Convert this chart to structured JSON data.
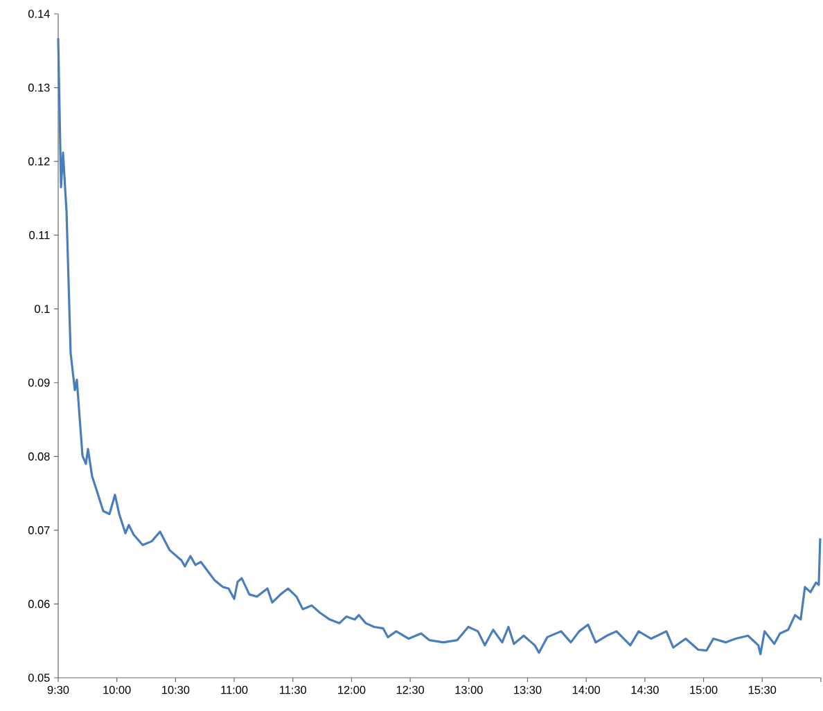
{
  "chart_data": {
    "type": "line",
    "x": [
      9.5,
      9.524,
      9.541,
      9.571,
      9.606,
      9.642,
      9.659,
      9.707,
      9.736,
      9.754,
      9.789,
      9.836,
      9.884,
      9.937,
      9.984,
      10.02,
      10.073,
      10.102,
      10.143,
      10.22,
      10.297,
      10.368,
      10.45,
      10.551,
      10.58,
      10.627,
      10.669,
      10.716,
      10.787,
      10.834,
      10.905,
      10.952,
      11.0,
      11.029,
      11.064,
      11.129,
      11.194,
      11.283,
      11.324,
      11.395,
      11.46,
      11.531,
      11.584,
      11.661,
      11.732,
      11.814,
      11.897,
      11.956,
      12.027,
      12.063,
      12.121,
      12.192,
      12.269,
      12.31,
      12.381,
      12.487,
      12.593,
      12.664,
      12.782,
      12.9,
      12.995,
      13.077,
      13.136,
      13.207,
      13.284,
      13.337,
      13.384,
      13.467,
      13.562,
      13.597,
      13.668,
      13.786,
      13.869,
      13.94,
      14.016,
      14.081,
      14.175,
      14.258,
      14.376,
      14.447,
      14.553,
      14.683,
      14.742,
      14.848,
      14.955,
      15.025,
      15.084,
      15.19,
      15.273,
      15.379,
      15.467,
      15.485,
      15.52,
      15.603,
      15.651,
      15.721,
      15.78,
      15.828,
      15.864,
      15.911,
      15.958,
      15.982,
      15.994
    ],
    "series": [
      {
        "color": "#4a7ebb",
        "values": [
          0.1367,
          0.1165,
          0.1212,
          0.1132,
          0.094,
          0.089,
          0.0904,
          0.0801,
          0.079,
          0.081,
          0.0773,
          0.075,
          0.0726,
          0.0722,
          0.0748,
          0.0722,
          0.0696,
          0.0707,
          0.0694,
          0.068,
          0.0685,
          0.0698,
          0.0673,
          0.0659,
          0.0651,
          0.0665,
          0.0653,
          0.0657,
          0.0642,
          0.0632,
          0.0623,
          0.0621,
          0.0607,
          0.063,
          0.0635,
          0.0613,
          0.061,
          0.0621,
          0.0602,
          0.0613,
          0.0621,
          0.061,
          0.0593,
          0.0598,
          0.0588,
          0.0579,
          0.0574,
          0.0583,
          0.0579,
          0.0585,
          0.0574,
          0.0569,
          0.0567,
          0.0555,
          0.0563,
          0.0553,
          0.056,
          0.0551,
          0.0548,
          0.0551,
          0.0569,
          0.0563,
          0.0544,
          0.0565,
          0.0548,
          0.0569,
          0.0546,
          0.0557,
          0.0544,
          0.0534,
          0.0555,
          0.0563,
          0.0548,
          0.0563,
          0.0572,
          0.0548,
          0.0557,
          0.0563,
          0.0544,
          0.0563,
          0.0553,
          0.0563,
          0.0541,
          0.0553,
          0.0538,
          0.0537,
          0.0553,
          0.0548,
          0.0553,
          0.0557,
          0.0544,
          0.0532,
          0.0563,
          0.0546,
          0.056,
          0.0565,
          0.0585,
          0.0579,
          0.0623,
          0.0616,
          0.0629,
          0.0626,
          0.0689
        ]
      }
    ],
    "xlim": [
      9.5,
      16
    ],
    "xticks": [
      {
        "value": 9.5,
        "label": "9:30"
      },
      {
        "value": 10,
        "label": "10:00"
      },
      {
        "value": 10.5,
        "label": "10:30"
      },
      {
        "value": 11,
        "label": "11:00"
      },
      {
        "value": 11.5,
        "label": "11:30"
      },
      {
        "value": 12,
        "label": "12:00"
      },
      {
        "value": 12.5,
        "label": "12:30"
      },
      {
        "value": 13,
        "label": "13:00"
      },
      {
        "value": 13.5,
        "label": "13:30"
      },
      {
        "value": 14,
        "label": "14:00"
      },
      {
        "value": 14.5,
        "label": "14:30"
      },
      {
        "value": 15,
        "label": "15:00"
      },
      {
        "value": 15.5,
        "label": "15:30"
      },
      {
        "value": 16,
        "label": null
      }
    ],
    "ylim": [
      0.05,
      0.14
    ],
    "yticks": [
      0.05,
      0.06,
      0.07,
      0.08,
      0.09,
      0.1,
      0.11,
      0.12,
      0.13,
      0.14
    ],
    "grid": false,
    "legend": false,
    "marker": "none",
    "line_style": "solid"
  }
}
